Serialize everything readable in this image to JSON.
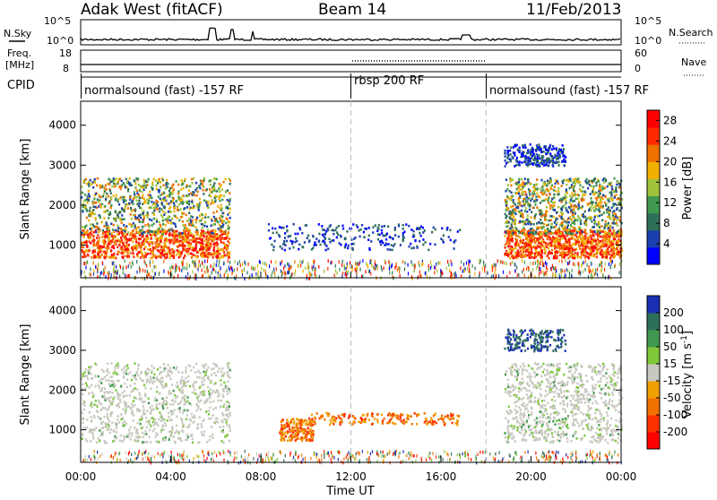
{
  "header": {
    "station": "Adak West (fitACF)",
    "beam": "Beam 14",
    "date": "11/Feb/2013"
  },
  "side_labels": {
    "nsky": "N.Sky",
    "freq": "Freq.",
    "mhz": "[MHz]",
    "cpid": "CPID",
    "nsearch": "N.Search",
    "nave": "Nave"
  },
  "noise_panel": {
    "left_ticks": [
      "10^5",
      "10^0"
    ],
    "right_ticks": [
      "10^5",
      "10^0"
    ]
  },
  "freq_panel": {
    "left_ticks": [
      "18",
      "8"
    ],
    "right_ticks": [
      "60",
      "0"
    ]
  },
  "cpid_segments": [
    {
      "label": "normalsound (fast) -157 RF",
      "start_hour": 0
    },
    {
      "label": "rbsp 200 RF",
      "start_hour": 12
    },
    {
      "label": "normalsound (fast) -157 RF",
      "start_hour": 18
    }
  ],
  "chart_data": [
    {
      "type": "heatmap",
      "ylabel": "Slant Range [km]",
      "xlabel": "Time UT",
      "x_ticks": [
        "00:00",
        "04:00",
        "08:00",
        "12:00",
        "16:00",
        "20:00",
        "00:00"
      ],
      "y_ticks": [
        "1000",
        "2000",
        "3000",
        "4000"
      ],
      "xlim_hours": [
        0,
        24
      ],
      "ylim_km": [
        180,
        4600
      ],
      "colorbar": {
        "label": "Power [dB]",
        "ticks": [
          "4",
          "8",
          "12",
          "16",
          "20",
          "24",
          "28"
        ],
        "range": [
          0,
          30
        ],
        "colors": [
          "#0000ff",
          "#1c3fb0",
          "#2e6f5a",
          "#3f9a4f",
          "#9fc33a",
          "#f0b000",
          "#f07000",
          "#ff2a00",
          "#ff0000"
        ]
      },
      "regions": [
        {
          "t0": 0.0,
          "t1": 6.6,
          "r0": 700,
          "r1": 1400,
          "intensity": "high"
        },
        {
          "t0": 0.0,
          "t1": 6.6,
          "r0": 1300,
          "r1": 2700,
          "intensity": "medium"
        },
        {
          "t0": 8.3,
          "t1": 16.8,
          "r0": 900,
          "r1": 1550,
          "intensity": "low"
        },
        {
          "t0": 18.8,
          "t1": 24.0,
          "r0": 700,
          "r1": 1400,
          "intensity": "high"
        },
        {
          "t0": 18.8,
          "t1": 24.0,
          "r0": 1300,
          "r1": 2700,
          "intensity": "medium"
        },
        {
          "t0": 18.8,
          "t1": 21.5,
          "r0": 3000,
          "r1": 3550,
          "intensity": "low"
        }
      ]
    },
    {
      "type": "heatmap",
      "ylabel": "Slant Range [km]",
      "xlabel": "Time UT",
      "x_ticks": [
        "00:00",
        "04:00",
        "08:00",
        "12:00",
        "16:00",
        "20:00",
        "00:00"
      ],
      "y_ticks": [
        "1000",
        "2000",
        "3000",
        "4000"
      ],
      "xlim_hours": [
        0,
        24
      ],
      "ylim_km": [
        180,
        4600
      ],
      "colorbar": {
        "label": "Velocity [m s^-1]",
        "ticks": [
          "200",
          "100",
          "50",
          "15",
          "-15",
          "-50",
          "-100",
          "-200"
        ],
        "colors": [
          "#1a2fb4",
          "#2e6f5a",
          "#3f9a4f",
          "#7ec83a",
          "#c8c8c0",
          "#f0a000",
          "#f07000",
          "#ff3000",
          "#ff0000"
        ]
      },
      "regions": [
        {
          "t0": 0.0,
          "t1": 6.6,
          "r0": 700,
          "r1": 2700,
          "kind": "ground-grey"
        },
        {
          "t0": 8.8,
          "t1": 10.3,
          "r0": 750,
          "r1": 1300,
          "kind": "negative-orange"
        },
        {
          "t0": 10.0,
          "t1": 16.8,
          "r0": 1150,
          "r1": 1450,
          "kind": "negative-orange"
        },
        {
          "t0": 18.8,
          "t1": 24.0,
          "r0": 700,
          "r1": 2700,
          "kind": "ground-grey"
        },
        {
          "t0": 18.8,
          "t1": 21.5,
          "r0": 3000,
          "r1": 3550,
          "kind": "positive-blue"
        }
      ]
    }
  ],
  "colors": {
    "frame": "#000000",
    "dashed_marker": "#bbbbbb"
  }
}
